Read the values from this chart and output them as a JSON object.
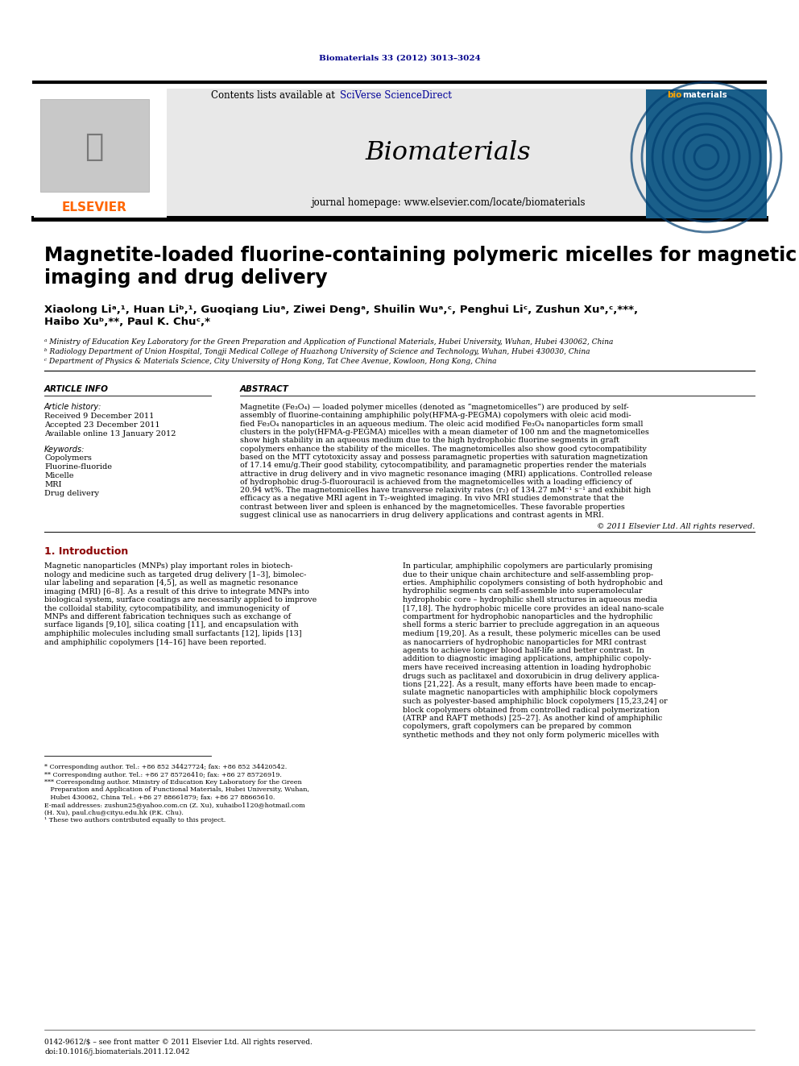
{
  "page_width": 9.92,
  "page_height": 13.23,
  "bg_color": "#ffffff",
  "journal_ref": "Biomaterials 33 (2012) 3013–3024",
  "journal_ref_color": "#00008B",
  "header_bg": "#e8e8e8",
  "journal_name": "Biomaterials",
  "contents_text": "Contents lists available at ",
  "sciverse_text": "SciVerse ScienceDirect",
  "homepage_text": "journal homepage: www.elsevier.com/locate/biomaterials",
  "elsevier_color": "#FF6600",
  "article_title": "Magnetite-loaded fluorine-containing polymeric micelles for magnetic resonance\nimaging and drug delivery",
  "authors": "Xiaolong Liᵃ,¹, Huan Liᵇ,¹, Guoqiang Liuᵃ, Ziwei Dengᵃ, Shuilin Wuᵃ,ᶜ, Penghui Liᶜ, Zushun Xuᵃ,ᶜ,***,\nHaibo Xuᵇ,**, Paul K. Chuᶜ,*",
  "affil_a": "ᵃ Ministry of Education Key Laboratory for the Green Preparation and Application of Functional Materials, Hubei University, Wuhan, Hubei 430062, China",
  "affil_b": "ᵇ Radiology Department of Union Hospital, Tongji Medical College of Huazhong University of Science and Technology, Wuhan, Hubei 430030, China",
  "affil_c": "ᶜ Department of Physics & Materials Science, City University of Hong Kong, Tat Chee Avenue, Kowloon, Hong Kong, China",
  "article_info_title": "ARTICLE INFO",
  "article_history_title": "Article history:",
  "received": "Received 9 December 2011",
  "accepted": "Accepted 23 December 2011",
  "available": "Available online 13 January 2012",
  "keywords_title": "Keywords:",
  "keywords": [
    "Copolymers",
    "Fluorine-fluoride",
    "Micelle",
    "MRI",
    "Drug delivery"
  ],
  "abstract_title": "ABSTRACT",
  "copyright_text": "© 2011 Elsevier Ltd. All rights reserved.",
  "intro_title": "1. Introduction",
  "footnote_star": "* Corresponding author. Tel.: +86 852 34427724; fax: +86 852 34420542.",
  "footnote_2star": "** Corresponding author. Tel.: +86 27 85726410; fax: +86 27 85726919.",
  "footnote_3star_1": "*** Corresponding author. Ministry of Education Key Laboratory for the Green",
  "footnote_3star_2": "   Preparation and Application of Functional Materials, Hubei University, Wuhan,",
  "footnote_3star_3": "   Hubei 430062, China Tel.: +86 27 88661879; fax: +86 27 88665610.",
  "footnote_email_1": "E-mail addresses: zushun25@yahoo.com.cn (Z. Xu), xuhaibo1120@hotmail.com",
  "footnote_email_2": "(H. Xu), paul.chu@cityu.edu.hk (P.K. Chu).",
  "footnote_equal": "¹ These two authors contributed equally to this project.",
  "bottom_line1": "0142-9612/$ – see front matter © 2011 Elsevier Ltd. All rights reserved.",
  "bottom_line2": "doi:10.1016/j.biomaterials.2011.12.042",
  "abstract_lines": [
    "Magnetite (Fe₃O₄) — loaded polymer micelles (denoted as “magnetomicelles”) are produced by self-",
    "assembly of fluorine-containing amphiphilic poly(HFMA-g-PEGMA) copolymers with oleic acid modi-",
    "fied Fe₃O₄ nanoparticles in an aqueous medium. The oleic acid modified Fe₃O₄ nanoparticles form small",
    "clusters in the poly(HFMA-g-PEGMA) micelles with a mean diameter of 100 nm and the magnetomicelles",
    "show high stability in an aqueous medium due to the high hydrophobic fluorine segments in graft",
    "copolymers enhance the stability of the micelles. The magnetomicelles also show good cytocompatibility",
    "based on the MTT cytotoxicity assay and possess paramagnetic properties with saturation magnetization",
    "of 17.14 emu/g.Their good stability, cytocompatibility, and paramagnetic properties render the materials",
    "attractive in drug delivery and in vivo magnetic resonance imaging (MRI) applications. Controlled release",
    "of hydrophobic drug-5-fluorouracil is achieved from the magnetomicelles with a loading efficiency of",
    "20.94 wt%. The magnetomicelles have transverse relaxivity rates (r₂) of 134.27 mM⁻¹ s⁻¹ and exhibit high",
    "efficacy as a negative MRI agent in T₂-weighted imaging. In vivo MRI studies demonstrate that the",
    "contrast between liver and spleen is enhanced by the magnetomicelles. These favorable properties",
    "suggest clinical use as nanocarriers in drug delivery applications and contrast agents in MRI."
  ],
  "intro_col1_lines": [
    "Magnetic nanoparticles (MNPs) play important roles in biotech-",
    "nology and medicine such as targeted drug delivery [1–3], bimolec-",
    "ular labeling and separation [4,5], as well as magnetic resonance",
    "imaging (MRI) [6–8]. As a result of this drive to integrate MNPs into",
    "biological system, surface coatings are necessarily applied to improve",
    "the colloidal stability, cytocompatibility, and immunogenicity of",
    "MNPs and different fabrication techniques such as exchange of",
    "surface ligands [9,10], silica coating [11], and encapsulation with",
    "amphiphilic molecules including small surfactants [12], lipids [13]",
    "and amphiphilic copolymers [14–16] have been reported."
  ],
  "intro_col2_lines": [
    "In particular, amphiphilic copolymers are particularly promising",
    "due to their unique chain architecture and self-assembling prop-",
    "erties. Amphiphilic copolymers consisting of both hydrophobic and",
    "hydrophilic segments can self-assemble into superamolecular",
    "hydrophobic core – hydrophilic shell structures in aqueous media",
    "[17,18]. The hydrophobic micelle core provides an ideal nano-scale",
    "compartment for hydrophobic nanoparticles and the hydrophilic",
    "shell forms a steric barrier to preclude aggregation in an aqueous",
    "medium [19,20]. As a result, these polymeric micelles can be used",
    "as nanocarriers of hydrophobic nanoparticles for MRI contrast",
    "agents to achieve longer blood half-life and better contrast. In",
    "addition to diagnostic imaging applications, amphiphilic copoly-",
    "mers have received increasing attention in loading hydrophobic",
    "drugs such as paclitaxel and doxorubicin in drug delivery applica-",
    "tions [21,22]. As a result, many efforts have been made to encap-",
    "sulate magnetic nanoparticles with amphiphilic block copolymers",
    "such as polyester-based amphiphilic block copolymers [15,23,24] or",
    "block copolymers obtained from controlled radical polymerization",
    "(ATRP and RAFT methods) [25–27]. As another kind of amphiphilic",
    "copolymers, graft copolymers can be prepared by common",
    "synthetic methods and they not only form polymeric micelles with"
  ]
}
